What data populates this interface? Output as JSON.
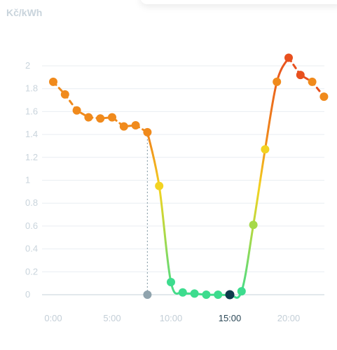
{
  "unit_label": "Kč/kWh",
  "chart_data": {
    "type": "line",
    "title": "",
    "xlabel": "",
    "ylabel": "Kč/kWh",
    "x": [
      0,
      1,
      2,
      3,
      4,
      5,
      6,
      7,
      8,
      9,
      10,
      11,
      12,
      13,
      14,
      15,
      16,
      17,
      18,
      19,
      20,
      21,
      22,
      23
    ],
    "series": [
      {
        "values": [
          1.86,
          1.75,
          1.61,
          1.55,
          1.54,
          1.55,
          1.47,
          1.48,
          1.42,
          0.95,
          0.11,
          0.02,
          0.01,
          0.0,
          0.0,
          0.0,
          0.03,
          0.61,
          1.27,
          1.86,
          2.07,
          1.92,
          1.86,
          1.73
        ]
      }
    ],
    "ylim": [
      0,
      2.1
    ],
    "y_ticks": [
      "0",
      "0.2",
      "0.4",
      "0.6",
      "0.8",
      "1",
      "1.2",
      "1.4",
      "1.6",
      "1.8",
      "2"
    ],
    "x_tick_labels": [
      {
        "hour": 0,
        "label": "0:00"
      },
      {
        "hour": 5,
        "label": "5:00"
      },
      {
        "hour": 10,
        "label": "10:00"
      },
      {
        "hour": 15,
        "label": "15:00"
      },
      {
        "hour": 20,
        "label": "20:00"
      }
    ],
    "selected_hour": 15,
    "marked_hour": 8,
    "grid": true,
    "colors": {
      "high": "#e8501e",
      "mid_high": "#f08a1c",
      "mid": "#f3d321",
      "low_mid": "#a6d94a",
      "low": "#3ddc8e",
      "selected_marker": "#0f3b4c",
      "marked_marker": "#8fa3ad",
      "grid": "#e9eef2",
      "guide": "#8fa3ad"
    }
  }
}
